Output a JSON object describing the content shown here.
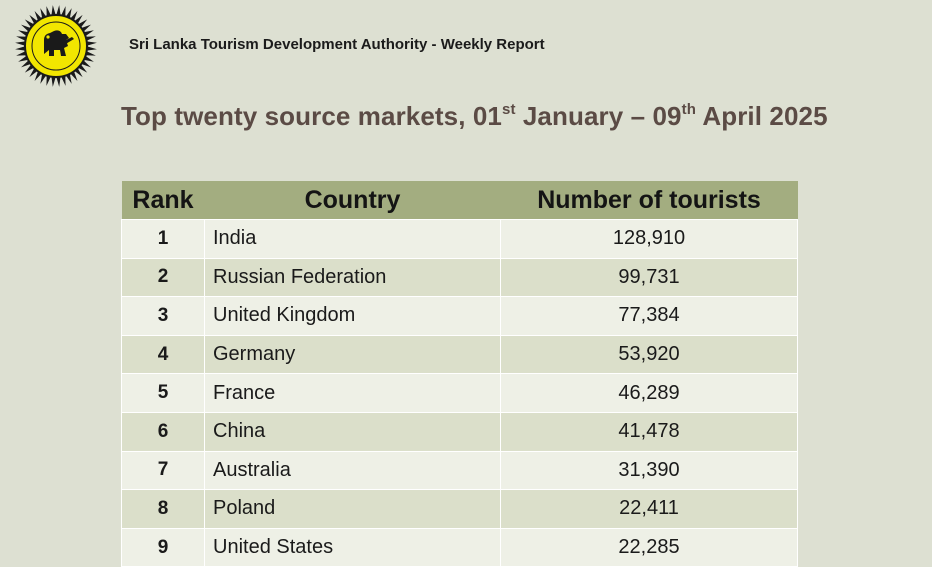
{
  "header": {
    "org_title": "Sri Lanka Tourism Development Authority - Weekly Report"
  },
  "title": {
    "part1": "Top twenty source markets, 01",
    "sup1": "st",
    "part2": " January – 09",
    "sup2": "th",
    "part3": " April 2025"
  },
  "table": {
    "headers": [
      "Rank",
      "Country",
      "Number of tourists"
    ],
    "rows": [
      {
        "rank": "1",
        "country": "India",
        "tourists": "128,910"
      },
      {
        "rank": "2",
        "country": "Russian Federation",
        "tourists": "99,731"
      },
      {
        "rank": "3",
        "country": "United Kingdom",
        "tourists": "77,384"
      },
      {
        "rank": "4",
        "country": "Germany",
        "tourists": "53,920"
      },
      {
        "rank": "5",
        "country": "France",
        "tourists": "46,289"
      },
      {
        "rank": "6",
        "country": "China",
        "tourists": "41,478"
      },
      {
        "rank": "7",
        "country": "Australia",
        "tourists": "31,390"
      },
      {
        "rank": "8",
        "country": "Poland",
        "tourists": "22,411"
      },
      {
        "rank": "9",
        "country": "United States",
        "tourists": "22,285"
      }
    ]
  },
  "colors": {
    "background": "#dde0d2",
    "header_fill": "#a3ad80",
    "title_color": "#5b4b45",
    "row_light": "#eef0e6",
    "row_dark": "#dbdfca",
    "logo_yellow": "#f2e600"
  },
  "icons": {
    "logo": "lion-emblem-logo"
  }
}
